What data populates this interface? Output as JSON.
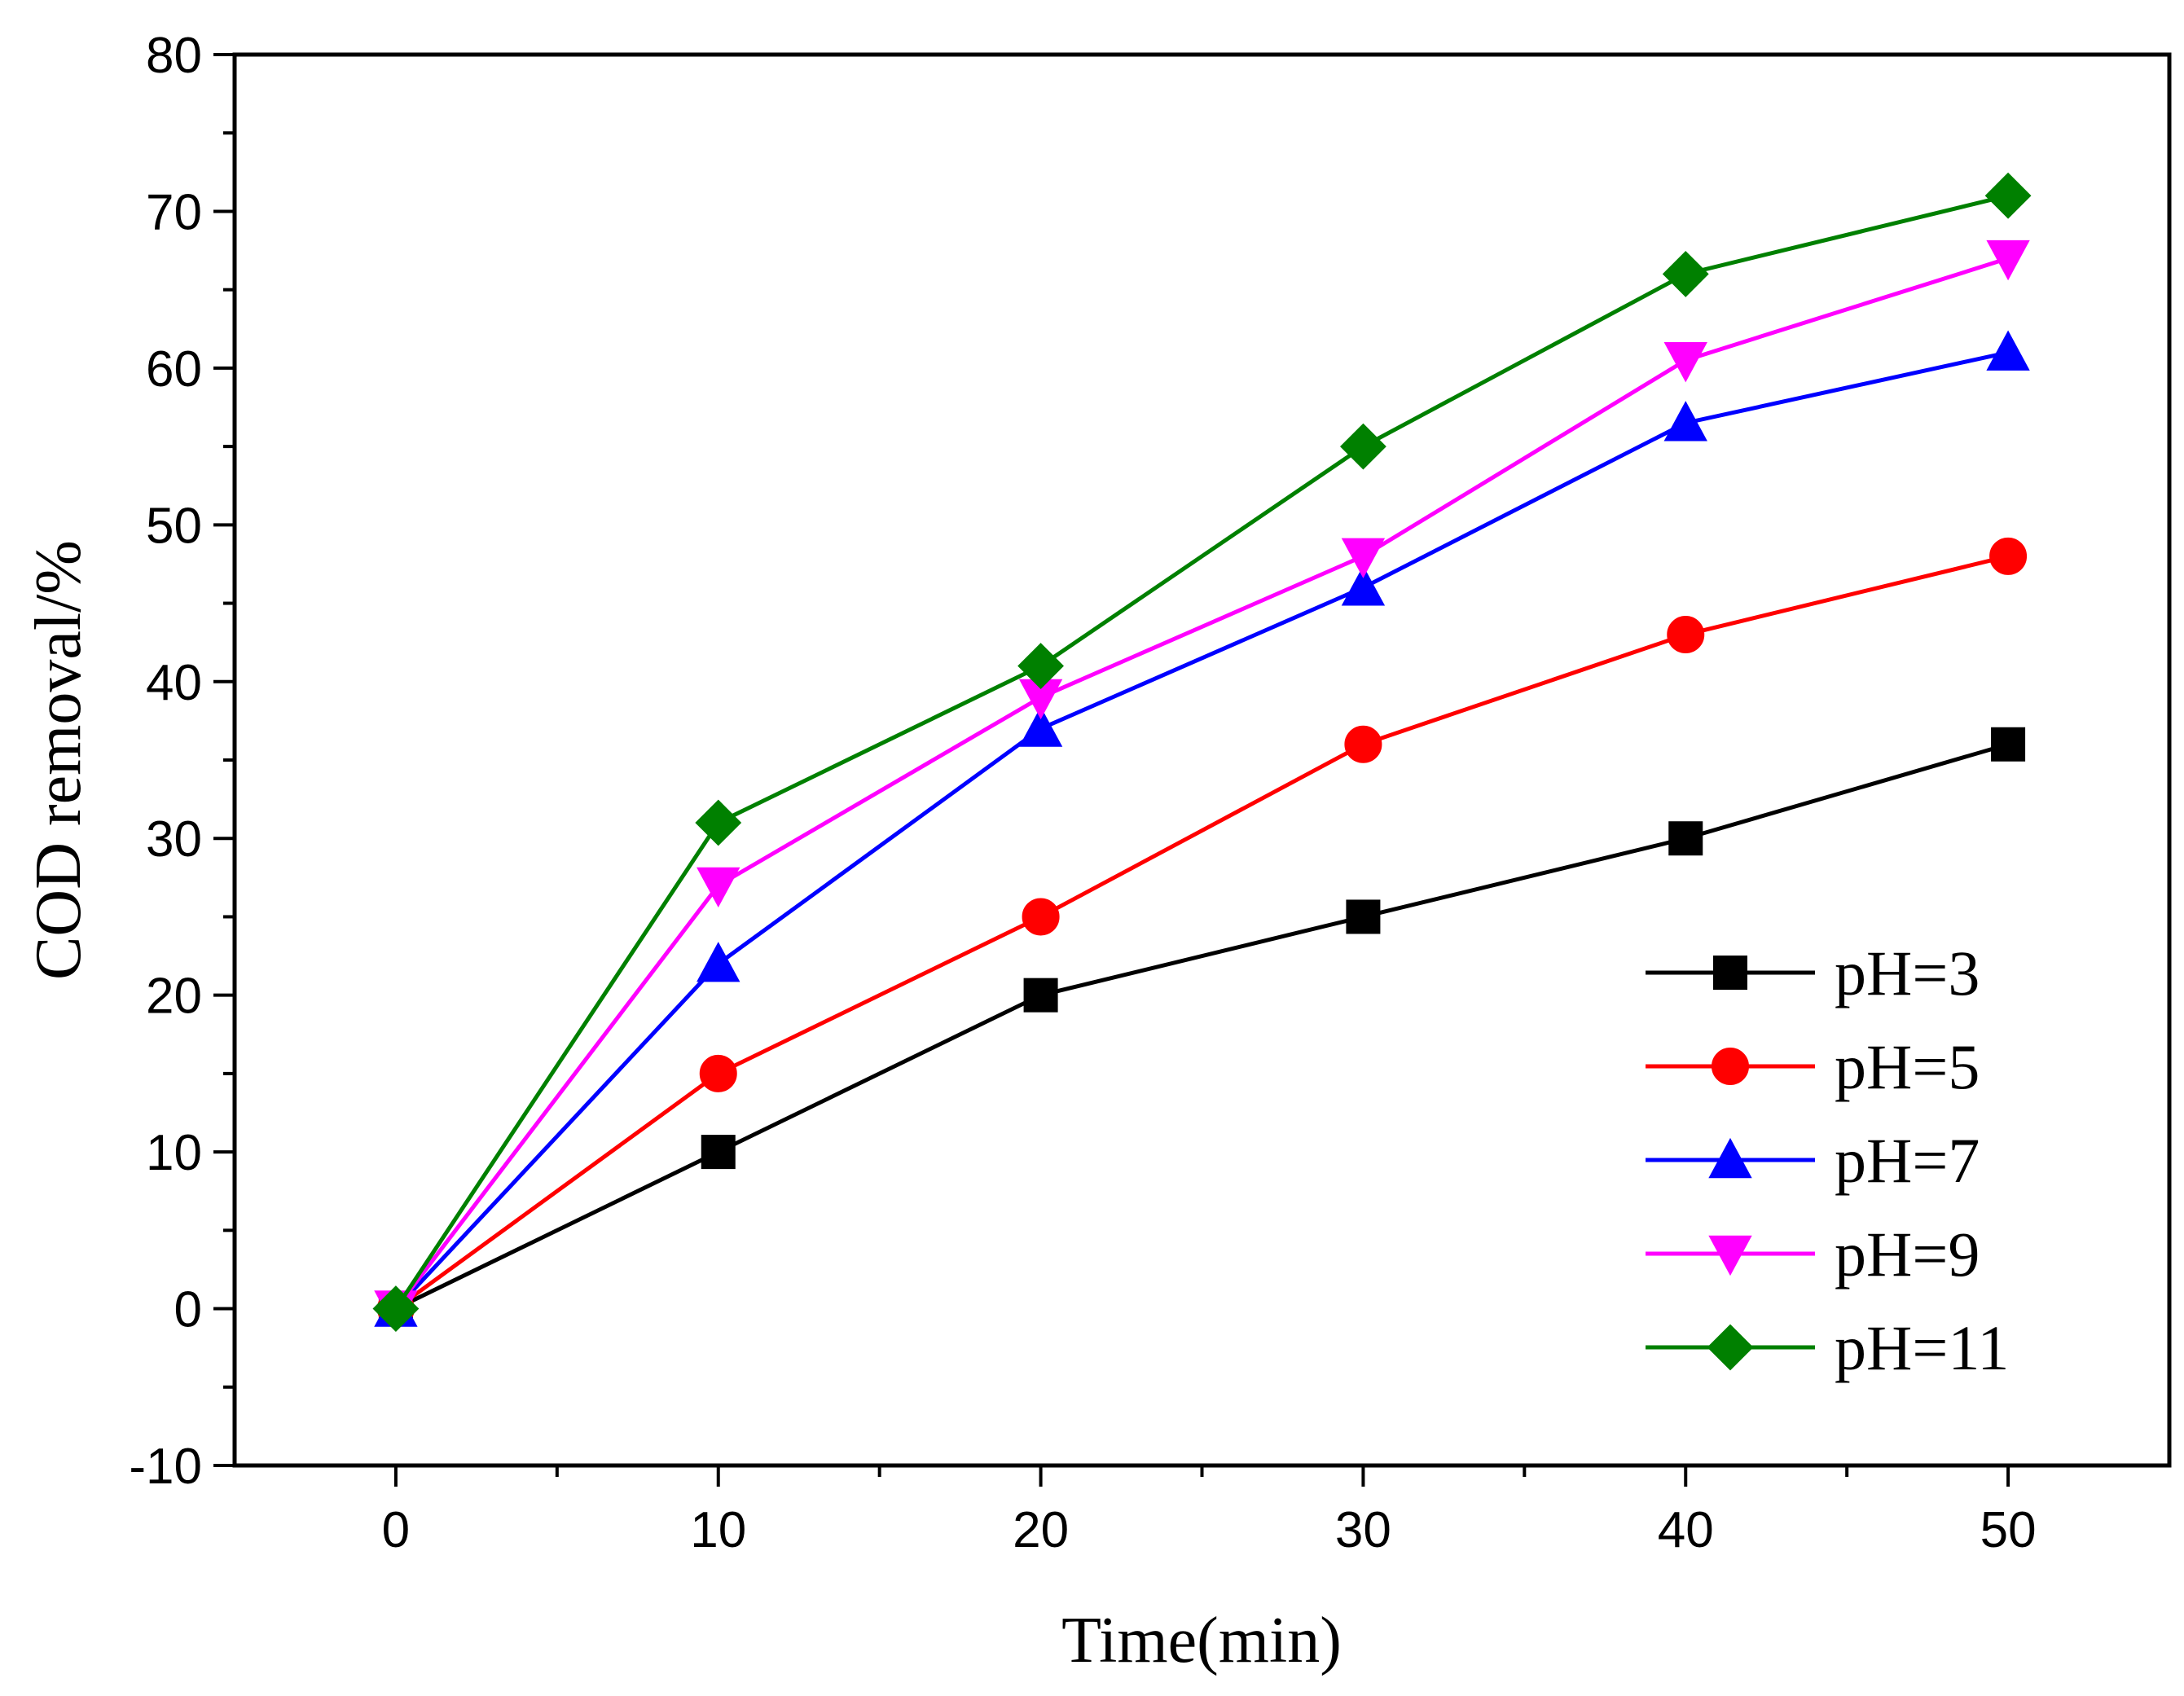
{
  "chart_data": {
    "type": "line",
    "title": "",
    "xlabel": "Time(min)",
    "ylabel": "COD removal/%",
    "x": [
      0,
      10,
      20,
      30,
      40,
      50
    ],
    "xlim": [
      -5,
      55
    ],
    "ylim": [
      -10,
      80
    ],
    "xticks": [
      0,
      10,
      20,
      30,
      40,
      50
    ],
    "yticks": [
      -10,
      0,
      10,
      20,
      30,
      40,
      50,
      60,
      70,
      80
    ],
    "grid": false,
    "legend_position": "bottom-right",
    "series": [
      {
        "name": "pH=3",
        "color": "#000000",
        "marker": "square",
        "values": [
          0,
          10,
          20,
          25,
          30,
          36
        ]
      },
      {
        "name": "pH=5",
        "color": "#ff0000",
        "marker": "circle",
        "values": [
          0,
          15,
          25,
          36,
          43,
          48
        ]
      },
      {
        "name": "pH=7",
        "color": "#0000ff",
        "marker": "triangle-up",
        "values": [
          0,
          22,
          37,
          46,
          56.5,
          61
        ]
      },
      {
        "name": "pH=9",
        "color": "#ff00ff",
        "marker": "triangle-down",
        "values": [
          0,
          27,
          39,
          48,
          60.5,
          67
        ]
      },
      {
        "name": "pH=11",
        "color": "#008000",
        "marker": "diamond",
        "values": [
          0,
          31,
          41,
          55,
          66,
          71
        ]
      }
    ]
  }
}
